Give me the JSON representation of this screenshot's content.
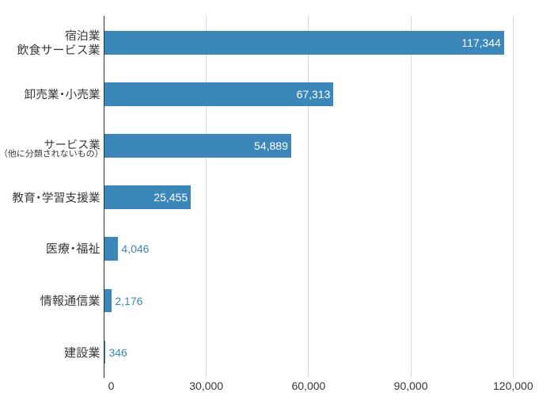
{
  "chart_data": {
    "type": "bar",
    "orientation": "horizontal",
    "categories": [
      "宿泊業 飲食サービス業",
      "卸売業・小売業",
      "サービス業（他に分類されないもの）",
      "教育・学習支援業",
      "医療・福祉",
      "情報通信業",
      "建設業"
    ],
    "category_lines": [
      [
        "宿泊業",
        "飲食サービス業"
      ],
      [
        "卸売業・小売業"
      ],
      [
        "サービス業",
        "（他に分類されないもの）"
      ],
      [
        "教育・学習支援業"
      ],
      [
        "医療・福祉"
      ],
      [
        "情報通信業"
      ],
      [
        "建設業"
      ]
    ],
    "values": [
      117344,
      67313,
      54889,
      25455,
      4046,
      2176,
      346
    ],
    "value_labels": [
      "117,344",
      "67,313",
      "54,889",
      "25,455",
      "4,046",
      "2,176",
      "346"
    ],
    "x_tick_labels": [
      "0",
      "30,000",
      "60,000",
      "90,000",
      "120,000"
    ],
    "x_tick_values": [
      0,
      30000,
      60000,
      90000,
      120000
    ],
    "xlim": [
      0,
      120000
    ],
    "xlabel": "",
    "ylabel": "",
    "title": "",
    "grid": "vertical-gridlines",
    "legend_position": "none",
    "colors": {
      "bar": "#3C87B9",
      "value_label_inside": "#FFFFFF",
      "value_label_outside": "#3C87B9",
      "axis_line": "#303030",
      "gridline": "#D9D9D9",
      "tick_label": "#373737",
      "category_label": "#373737",
      "background": "#FFFFFF"
    }
  }
}
